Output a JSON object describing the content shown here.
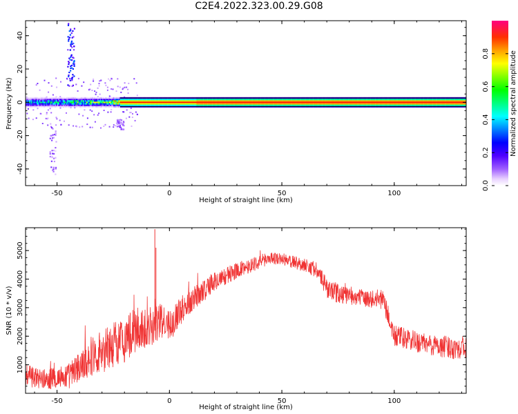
{
  "title": "C2E4.2022.323.00.29.G08",
  "chart_data": [
    {
      "type": "heatmap",
      "xlabel": "Height of straight line (km)",
      "ylabel": "Frequency (Hz)",
      "xlim": [
        -64,
        132
      ],
      "ylim": [
        -50,
        49
      ],
      "xticks": [
        -50,
        0,
        50,
        100
      ],
      "yticks": [
        -40,
        -20,
        0,
        20,
        40
      ],
      "colorbar": {
        "label": "Normalized spectral amplitude",
        "range": [
          0.0,
          1.0
        ],
        "ticks": [
          0.0,
          0.2,
          0.4,
          0.6,
          0.8
        ]
      },
      "ridge": {
        "frequency": 0,
        "strong_from_x": -22,
        "segments": [
          {
            "x": [
              -64,
              -45
            ],
            "amp": 0.45
          },
          {
            "x": [
              -45,
              -25
            ],
            "amp": 0.55
          },
          {
            "x": [
              -25,
              12
            ],
            "amp": 0.85
          },
          {
            "x": [
              12,
              132
            ],
            "amp": 0.95
          }
        ]
      },
      "scatter_features": [
        {
          "x": -44,
          "freq_range": [
            10,
            48
          ],
          "amp": 0.25
        },
        {
          "x": -52,
          "freq_range": [
            -45,
            -10
          ],
          "amp": 0.1
        },
        {
          "x": -22,
          "freq_range": [
            -16,
            -10
          ],
          "amp": 0.1
        }
      ]
    },
    {
      "type": "line",
      "xlabel": "Height of straight line (km)",
      "ylabel": "SNR (10 * v/v)",
      "xlim": [
        -64,
        132
      ],
      "ylim": [
        0,
        5800
      ],
      "xticks": [
        -50,
        0,
        50,
        100
      ],
      "yticks": [
        1000,
        2000,
        3000,
        4000,
        5000
      ],
      "color": "#f03333",
      "envelope": {
        "x": [
          -64,
          -55,
          -45,
          -40,
          -35,
          -30,
          -25,
          -20,
          -15,
          -10,
          -5,
          0,
          5,
          10,
          15,
          20,
          25,
          30,
          35,
          40,
          45,
          50,
          55,
          60,
          65,
          70,
          75,
          80,
          85,
          90,
          95,
          100,
          105,
          110,
          115,
          120,
          125,
          132
        ],
        "mean": [
          600,
          500,
          600,
          900,
          1300,
          1500,
          1700,
          1900,
          2200,
          2300,
          2500,
          2400,
          2900,
          3300,
          3600,
          3900,
          4100,
          4300,
          4450,
          4600,
          4750,
          4700,
          4600,
          4500,
          4350,
          3700,
          3500,
          3400,
          3350,
          3300,
          3300,
          2000,
          1900,
          1800,
          1700,
          1650,
          1600,
          1600
        ],
        "spread": [
          400,
          350,
          450,
          550,
          700,
          800,
          800,
          850,
          800,
          700,
          700,
          500,
          500,
          450,
          400,
          350,
          300,
          300,
          250,
          250,
          220,
          220,
          230,
          250,
          280,
          350,
          350,
          300,
          300,
          320,
          350,
          400,
          380,
          380,
          380,
          400,
          400,
          400
        ]
      },
      "spikes": [
        {
          "x": -6.5,
          "value": 5750
        },
        {
          "x": -6.0,
          "value": 5100
        }
      ]
    }
  ]
}
